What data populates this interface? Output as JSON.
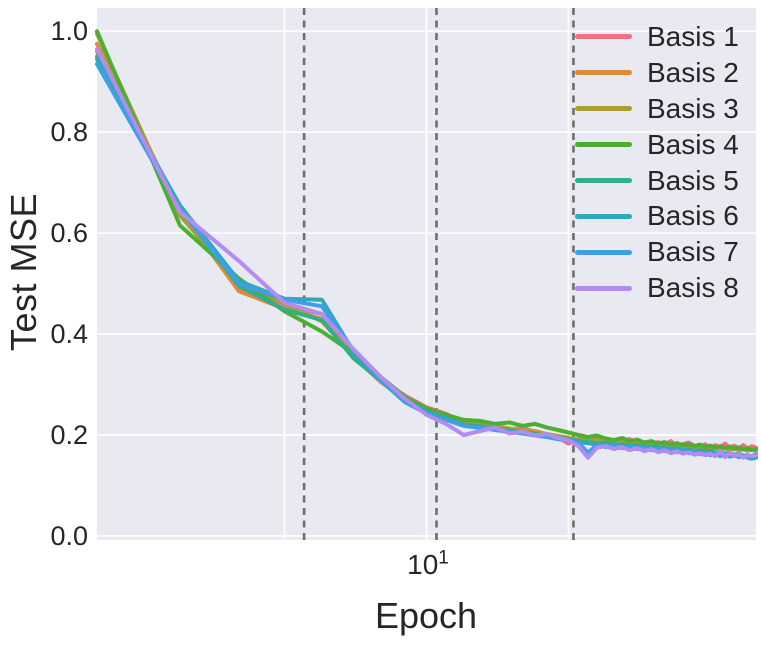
{
  "figure": {
    "background": "#ffffff",
    "axes_background": "#e9e9f1",
    "grid_color": "#ffffff",
    "text_color": "#262626"
  },
  "chart_data": {
    "type": "line",
    "title": "",
    "xlabel": "Epoch",
    "ylabel": "Test MSE",
    "xscale": "log",
    "xlim": [
      2,
      50
    ],
    "ylim": [
      -0.008,
      1.046
    ],
    "grid": true,
    "x_gridlines": [
      5,
      10,
      20
    ],
    "x_major_tick": {
      "base": "10",
      "exponent": "1",
      "value": 10
    },
    "yticks": [
      {
        "label": "0.0",
        "value": 0.0
      },
      {
        "label": "0.2",
        "value": 0.2
      },
      {
        "label": "0.4",
        "value": 0.4
      },
      {
        "label": "0.6",
        "value": 0.6
      },
      {
        "label": "0.8",
        "value": 0.8
      },
      {
        "label": "1.0",
        "value": 1.0
      }
    ],
    "vlines": {
      "values": [
        5.5,
        10.5,
        20.5
      ],
      "style": "dashed",
      "color": "#6e6e6e"
    },
    "legend_position": "upper right",
    "x": [
      2,
      3,
      4,
      5,
      6,
      7,
      8,
      9,
      10,
      11,
      12,
      13,
      14,
      15,
      16,
      17,
      18,
      19,
      20,
      21,
      22,
      23,
      24,
      25,
      26,
      27,
      28,
      29,
      30,
      31,
      32,
      33,
      34,
      35,
      36,
      37,
      38,
      39,
      40,
      41,
      42,
      43,
      44,
      45,
      46,
      47,
      48,
      49,
      50
    ],
    "series": [
      {
        "name": "Basis 1",
        "color": "#f07082",
        "values": [
          0.96,
          0.64,
          0.49,
          0.455,
          0.44,
          0.365,
          0.31,
          0.278,
          0.255,
          0.242,
          0.225,
          0.22,
          0.215,
          0.21,
          0.215,
          0.205,
          0.2,
          0.196,
          0.183,
          0.192,
          0.195,
          0.19,
          0.192,
          0.186,
          0.188,
          0.192,
          0.184,
          0.186,
          0.182,
          0.186,
          0.18,
          0.188,
          0.176,
          0.182,
          0.185,
          0.179,
          0.176,
          0.182,
          0.174,
          0.18,
          0.176,
          0.183,
          0.175,
          0.179,
          0.174,
          0.18,
          0.173,
          0.178,
          0.175
        ]
      },
      {
        "name": "Basis 2",
        "color": "#dc8c3a",
        "values": [
          0.975,
          0.645,
          0.485,
          0.45,
          0.43,
          0.355,
          0.305,
          0.27,
          0.248,
          0.235,
          0.22,
          0.225,
          0.218,
          0.213,
          0.21,
          0.208,
          0.202,
          0.198,
          0.195,
          0.189,
          0.193,
          0.187,
          0.19,
          0.184,
          0.186,
          0.183,
          0.187,
          0.181,
          0.184,
          0.18,
          0.183,
          0.178,
          0.181,
          0.177,
          0.18,
          0.176,
          0.179,
          0.175,
          0.178,
          0.174,
          0.177,
          0.173,
          0.176,
          0.172,
          0.175,
          0.171,
          0.174,
          0.17,
          0.172
        ]
      },
      {
        "name": "Basis 3",
        "color": "#a89e32",
        "values": [
          0.995,
          0.635,
          0.5,
          0.46,
          0.425,
          0.358,
          0.312,
          0.272,
          0.25,
          0.237,
          0.224,
          0.219,
          0.216,
          0.211,
          0.208,
          0.204,
          0.201,
          0.197,
          0.194,
          0.191,
          0.189,
          0.192,
          0.186,
          0.189,
          0.183,
          0.186,
          0.181,
          0.184,
          0.179,
          0.182,
          0.177,
          0.18,
          0.176,
          0.179,
          0.175,
          0.177,
          0.174,
          0.176,
          0.173,
          0.175,
          0.172,
          0.174,
          0.171,
          0.173,
          0.17,
          0.172,
          0.169,
          0.171,
          0.17
        ]
      },
      {
        "name": "Basis 4",
        "color": "#4caf32",
        "values": [
          1.0,
          0.615,
          0.51,
          0.445,
          0.405,
          0.362,
          0.315,
          0.276,
          0.253,
          0.24,
          0.23,
          0.228,
          0.222,
          0.225,
          0.218,
          0.222,
          0.215,
          0.21,
          0.205,
          0.2,
          0.196,
          0.199,
          0.193,
          0.19,
          0.194,
          0.188,
          0.191,
          0.185,
          0.188,
          0.183,
          0.186,
          0.181,
          0.184,
          0.18,
          0.182,
          0.178,
          0.181,
          0.176,
          0.179,
          0.175,
          0.178,
          0.174,
          0.177,
          0.173,
          0.175,
          0.172,
          0.174,
          0.171,
          0.172
        ]
      },
      {
        "name": "Basis 5",
        "color": "#33ad8c",
        "values": [
          0.95,
          0.65,
          0.495,
          0.448,
          0.428,
          0.352,
          0.308,
          0.268,
          0.246,
          0.233,
          0.221,
          0.217,
          0.213,
          0.209,
          0.206,
          0.202,
          0.199,
          0.195,
          0.192,
          0.188,
          0.186,
          0.183,
          0.185,
          0.18,
          0.182,
          0.178,
          0.18,
          0.176,
          0.178,
          0.174,
          0.176,
          0.172,
          0.174,
          0.17,
          0.172,
          0.168,
          0.17,
          0.167,
          0.169,
          0.165,
          0.167,
          0.163,
          0.165,
          0.161,
          0.163,
          0.159,
          0.16,
          0.157,
          0.156
        ]
      },
      {
        "name": "Basis 6",
        "color": "#2fa8b9",
        "values": [
          0.945,
          0.655,
          0.505,
          0.47,
          0.468,
          0.365,
          0.312,
          0.27,
          0.247,
          0.232,
          0.219,
          0.215,
          0.211,
          0.207,
          0.204,
          0.2,
          0.197,
          0.193,
          0.19,
          0.186,
          0.184,
          0.181,
          0.179,
          0.182,
          0.177,
          0.179,
          0.175,
          0.177,
          0.173,
          0.175,
          0.171,
          0.173,
          0.169,
          0.171,
          0.167,
          0.169,
          0.165,
          0.167,
          0.163,
          0.165,
          0.161,
          0.163,
          0.159,
          0.161,
          0.157,
          0.159,
          0.155,
          0.153,
          0.155
        ]
      },
      {
        "name": "Basis 7",
        "color": "#3f9fe3",
        "values": [
          0.935,
          0.648,
          0.5,
          0.468,
          0.455,
          0.368,
          0.308,
          0.265,
          0.243,
          0.23,
          0.218,
          0.214,
          0.21,
          0.206,
          0.203,
          0.199,
          0.196,
          0.192,
          0.189,
          0.185,
          0.165,
          0.18,
          0.176,
          0.179,
          0.174,
          0.177,
          0.172,
          0.175,
          0.17,
          0.173,
          0.168,
          0.171,
          0.166,
          0.169,
          0.164,
          0.167,
          0.162,
          0.165,
          0.16,
          0.163,
          0.158,
          0.162,
          0.157,
          0.16,
          0.156,
          0.159,
          0.155,
          0.158,
          0.163
        ]
      },
      {
        "name": "Basis 8",
        "color": "#b48cf1",
        "values": [
          0.965,
          0.642,
          0.545,
          0.462,
          0.44,
          0.37,
          0.315,
          0.272,
          0.24,
          0.222,
          0.2,
          0.208,
          0.215,
          0.203,
          0.207,
          0.199,
          0.202,
          0.194,
          0.19,
          0.178,
          0.155,
          0.175,
          0.178,
          0.172,
          0.176,
          0.17,
          0.174,
          0.168,
          0.172,
          0.166,
          0.17,
          0.164,
          0.168,
          0.163,
          0.166,
          0.161,
          0.164,
          0.16,
          0.163,
          0.158,
          0.168,
          0.156,
          0.165,
          0.158,
          0.162,
          0.155,
          0.16,
          0.158,
          0.16
        ]
      }
    ]
  }
}
